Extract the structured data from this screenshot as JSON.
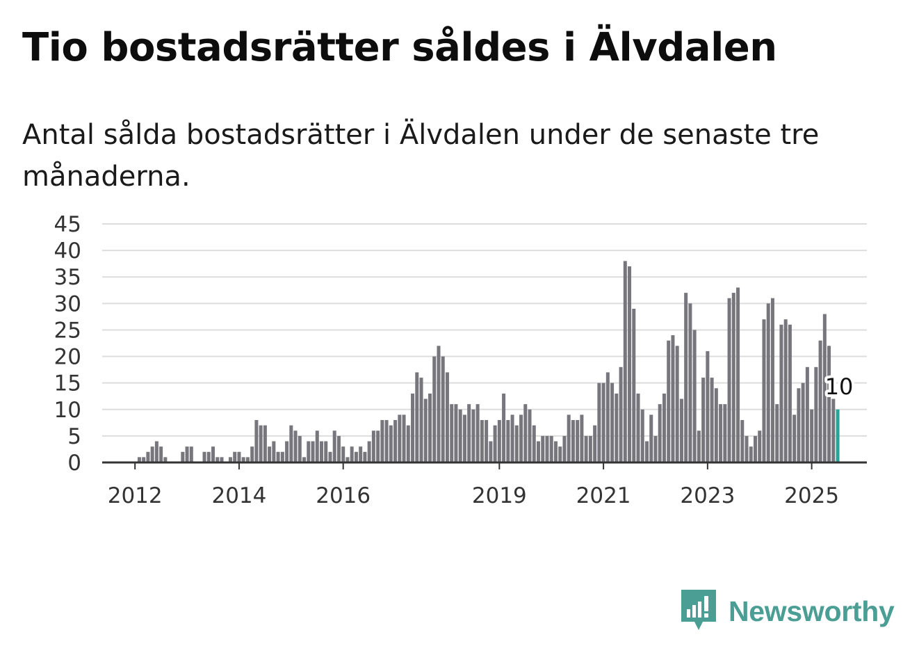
{
  "title": "Tio bostadsrätter såldes i Älvdalen",
  "subtitle": "Antal sålda bostadsrätter i Älvdalen under de senaste tre månaderna.",
  "brand": {
    "name": "Newsworthy",
    "icon": "newsworthy-logo-icon",
    "color": "#4a9e94"
  },
  "colors": {
    "bars": "#77767c",
    "highlight": "#26a69a",
    "grid": "#dddddd",
    "axis": "#333333"
  },
  "chart_data": {
    "type": "bar",
    "ylim": [
      0,
      45
    ],
    "yticks": [
      0,
      5,
      10,
      15,
      20,
      25,
      30,
      35,
      40,
      45
    ],
    "xticks": [
      {
        "label": "2012",
        "index": 7
      },
      {
        "label": "2014",
        "index": 31
      },
      {
        "label": "2016",
        "index": 55
      },
      {
        "label": "2019",
        "index": 91
      },
      {
        "label": "2021",
        "index": 115
      },
      {
        "label": "2023",
        "index": 139
      },
      {
        "label": "2025",
        "index": 163
      }
    ],
    "grid": true,
    "values": [
      0,
      0,
      0,
      0,
      0,
      0,
      0,
      0,
      1,
      1,
      2,
      3,
      4,
      3,
      1,
      0,
      0,
      0,
      2,
      3,
      3,
      0,
      0,
      2,
      2,
      3,
      1,
      1,
      0,
      1,
      2,
      2,
      1,
      1,
      3,
      8,
      7,
      7,
      3,
      4,
      2,
      2,
      4,
      7,
      6,
      5,
      1,
      4,
      4,
      6,
      4,
      4,
      2,
      6,
      5,
      3,
      1,
      3,
      2,
      3,
      2,
      4,
      6,
      6,
      8,
      8,
      7,
      8,
      9,
      9,
      7,
      13,
      17,
      16,
      12,
      13,
      20,
      22,
      20,
      17,
      11,
      11,
      10,
      9,
      11,
      10,
      11,
      8,
      8,
      4,
      7,
      8,
      13,
      8,
      9,
      7,
      9,
      11,
      10,
      7,
      4,
      5,
      5,
      5,
      4,
      3,
      5,
      9,
      8,
      8,
      9,
      5,
      5,
      7,
      15,
      15,
      17,
      15,
      13,
      18,
      38,
      37,
      29,
      13,
      10,
      4,
      9,
      5,
      11,
      13,
      23,
      24,
      22,
      12,
      32,
      30,
      25,
      6,
      16,
      21,
      16,
      14,
      11,
      11,
      31,
      32,
      33,
      8,
      5,
      3,
      5,
      6,
      27,
      30,
      31,
      11,
      26,
      27,
      26,
      9,
      14,
      15,
      18,
      10,
      18,
      23,
      28,
      22,
      12,
      10
    ],
    "highlight_last": true,
    "annotation": {
      "text": "10",
      "index": 169
    }
  }
}
